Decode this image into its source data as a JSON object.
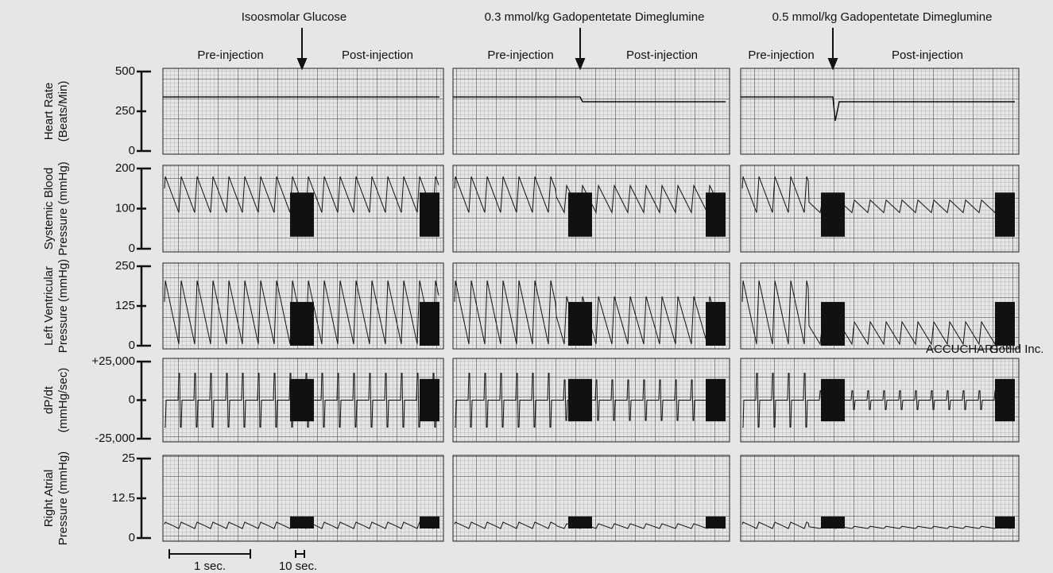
{
  "columns": [
    {
      "title": "Isoosmolar Glucose",
      "pre": "Pre-injection",
      "post": "Post-injection"
    },
    {
      "title": "0.3 mmol/kg Gadopentetate Dimeglumine",
      "pre": "Pre-injection",
      "post": "Post-injection"
    },
    {
      "title": "0.5 mmol/kg Gadopentetate Dimeglumine",
      "pre": "Pre-injection",
      "post": "Post-injection"
    }
  ],
  "rows": [
    {
      "label": [
        "Heart Rate",
        "(Beats/Min)"
      ],
      "ticks": [
        "500",
        "250",
        "0"
      ]
    },
    {
      "label": [
        "Systemic Blood",
        "Pressure (mmHg)"
      ],
      "ticks": [
        "200",
        "100",
        "0"
      ]
    },
    {
      "label": [
        "Left Ventricular",
        "Pressure (mmHg)"
      ],
      "ticks": [
        "250",
        "125",
        "0"
      ]
    },
    {
      "label": [
        "dP/dt",
        "(mmHg/sec)"
      ],
      "ticks": [
        "+25,000",
        "0",
        "-25,000"
      ]
    },
    {
      "label": [
        "Right Atrial",
        "Pressure (mmHg)"
      ],
      "ticks": [
        "25",
        "12.5",
        "0"
      ]
    }
  ],
  "scale_bars": [
    "1 sec.",
    "10 sec."
  ],
  "watermark": [
    "ACCUCHART™",
    "Gould Inc."
  ]
}
